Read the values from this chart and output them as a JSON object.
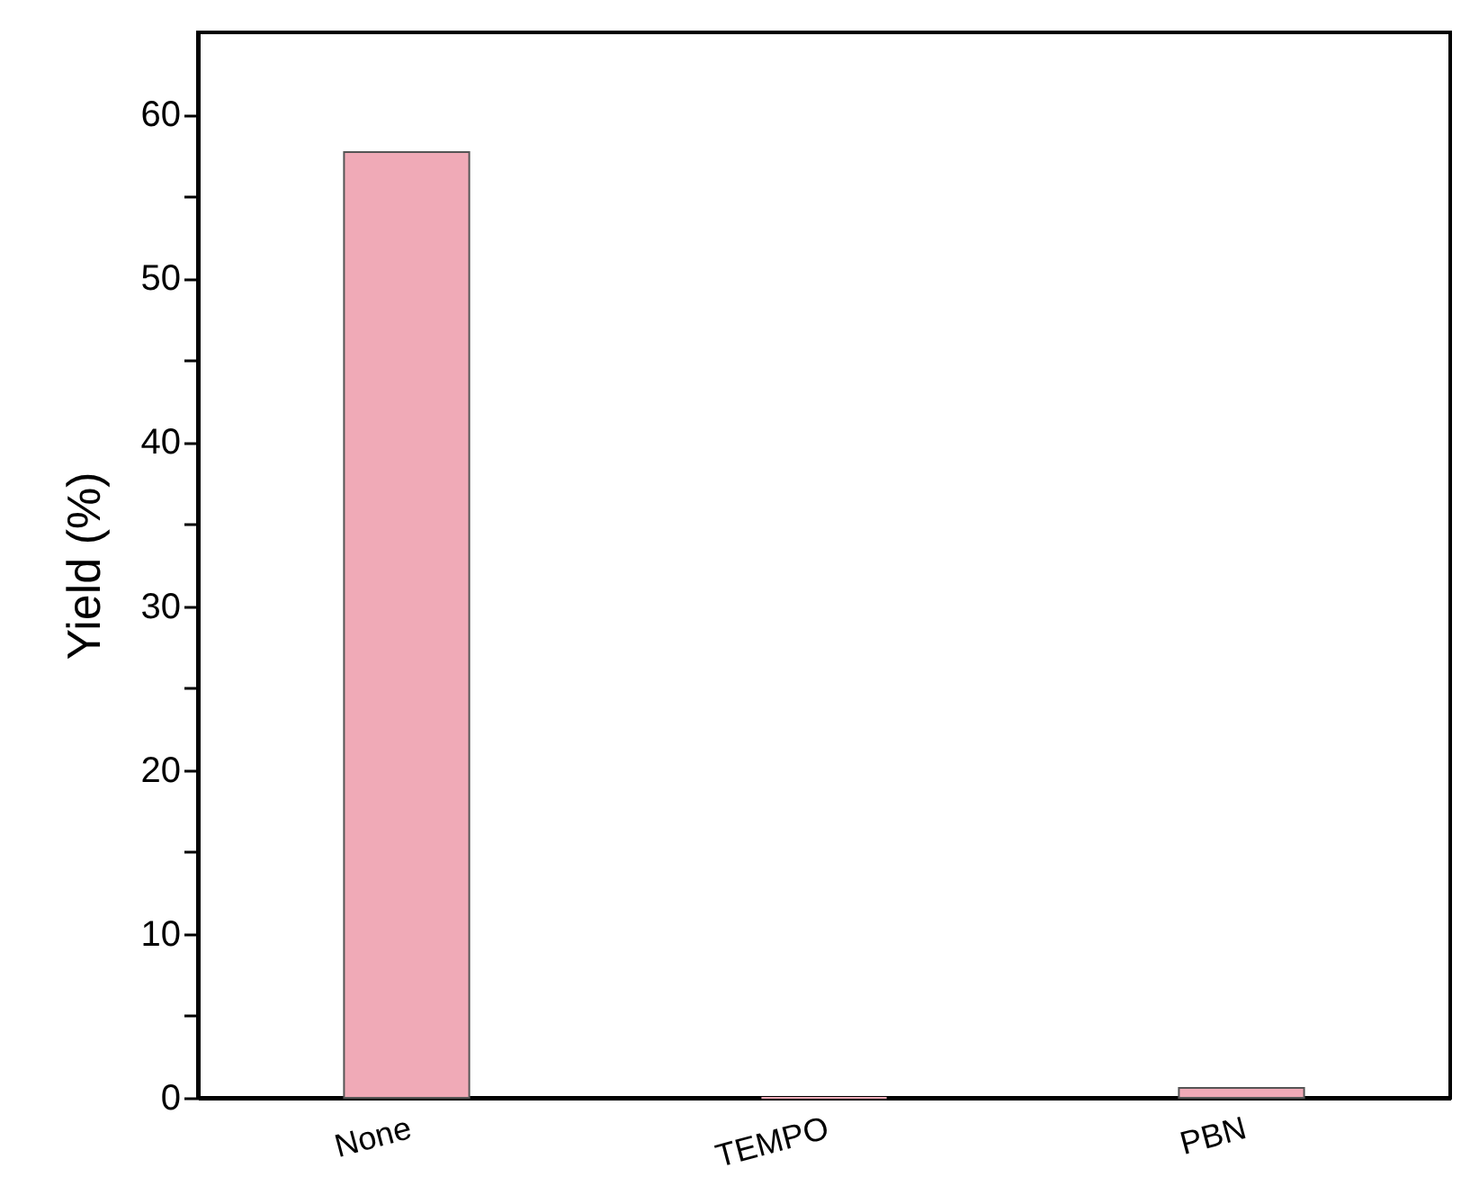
{
  "chart_data": {
    "type": "bar",
    "ylabel": "Yield (%)",
    "categories": [
      "None",
      "TEMPO",
      "PBN"
    ],
    "values": [
      57.7,
      0,
      0.6
    ],
    "color": "#f0aab7",
    "ylim": [
      0,
      65
    ],
    "yticks": [
      0,
      {
        "value": 5,
        "label": null
      },
      10,
      {
        "value": 15,
        "label": null
      },
      20,
      {
        "value": 25,
        "label": null
      },
      30,
      {
        "value": 35,
        "label": null
      },
      40,
      {
        "value": 45,
        "label": null
      },
      50,
      {
        "value": 55,
        "label": null
      },
      60
    ],
    "grid": false
  }
}
